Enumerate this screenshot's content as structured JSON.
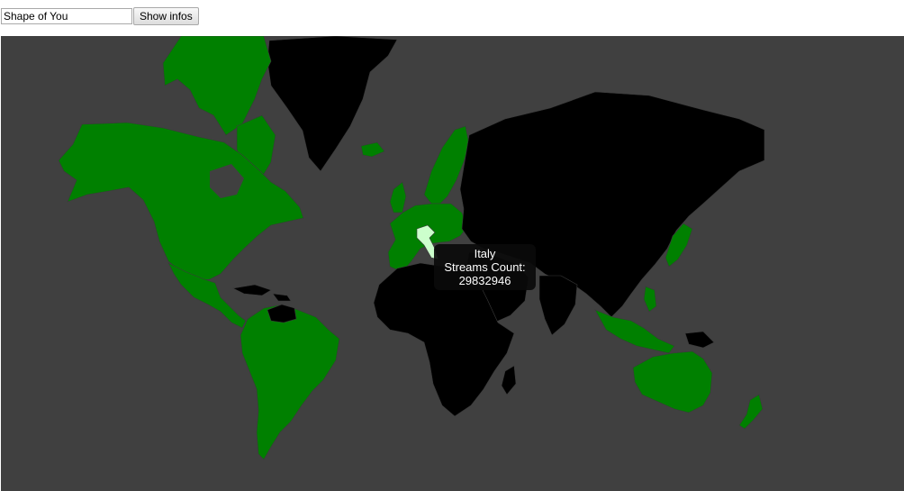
{
  "search": {
    "value": "Shape of You"
  },
  "toolbar": {
    "show_label": "Show infos"
  },
  "colors": {
    "ocean": "#404040",
    "has_streams": "#008000",
    "no_streams": "#000000",
    "highlight": "#ccffcc",
    "tooltip_bg": "#0a0a0a"
  },
  "map": {
    "green_regions": [
      "North America",
      "Central America",
      "South America",
      "Western Europe",
      "Scandinavia",
      "Japan",
      "Southeast Asia",
      "Australia",
      "New Zealand"
    ],
    "black_regions": [
      "Greenland",
      "Russia",
      "Asia",
      "Middle East",
      "Africa",
      "Venezuela",
      "Cuba",
      "Papua New Guinea"
    ],
    "highlighted": "Italy"
  },
  "tooltip": {
    "country": "Italy",
    "label": "Streams Count:",
    "value": "29832946"
  }
}
